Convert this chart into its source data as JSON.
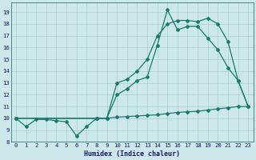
{
  "xlabel": "Humidex (Indice chaleur)",
  "bg_color": "#cce8ea",
  "grid_color": "#aacdd0",
  "line_color": "#1a7a6e",
  "xlim": [
    -0.5,
    23.5
  ],
  "ylim": [
    8.0,
    19.8
  ],
  "yticks": [
    8,
    9,
    10,
    11,
    12,
    13,
    14,
    15,
    16,
    17,
    18,
    19
  ],
  "xticks": [
    0,
    1,
    2,
    3,
    4,
    5,
    6,
    7,
    8,
    9,
    10,
    11,
    12,
    13,
    14,
    15,
    16,
    17,
    18,
    19,
    20,
    21,
    22,
    23
  ],
  "line1_x": [
    0,
    1,
    2,
    3,
    4,
    5,
    6,
    7,
    8,
    9,
    10,
    11,
    12,
    13,
    14,
    15,
    16,
    17,
    18,
    19,
    20,
    21,
    22,
    23
  ],
  "line1_y": [
    10.0,
    9.3,
    9.9,
    9.9,
    9.8,
    9.7,
    8.5,
    9.3,
    10.0,
    10.0,
    10.1,
    10.15,
    10.2,
    10.25,
    10.3,
    10.4,
    10.5,
    10.55,
    10.6,
    10.7,
    10.8,
    10.9,
    11.0,
    11.0
  ],
  "line2_x": [
    0,
    8,
    9,
    10,
    11,
    12,
    13,
    14,
    15,
    16,
    17,
    18,
    19,
    20,
    21,
    22,
    23
  ],
  "line2_y": [
    10.0,
    10.0,
    10.0,
    13.0,
    13.3,
    14.0,
    15.0,
    17.0,
    18.0,
    18.3,
    18.3,
    18.2,
    18.5,
    18.0,
    16.5,
    13.2,
    11.0
  ],
  "line3_x": [
    0,
    8,
    9,
    10,
    11,
    12,
    13,
    14,
    15,
    16,
    17,
    18,
    19,
    20,
    21,
    22,
    23
  ],
  "line3_y": [
    10.0,
    10.0,
    10.0,
    12.0,
    12.5,
    13.2,
    13.5,
    16.2,
    19.2,
    17.5,
    17.8,
    17.8,
    16.8,
    15.8,
    14.3,
    13.2,
    11.0
  ]
}
